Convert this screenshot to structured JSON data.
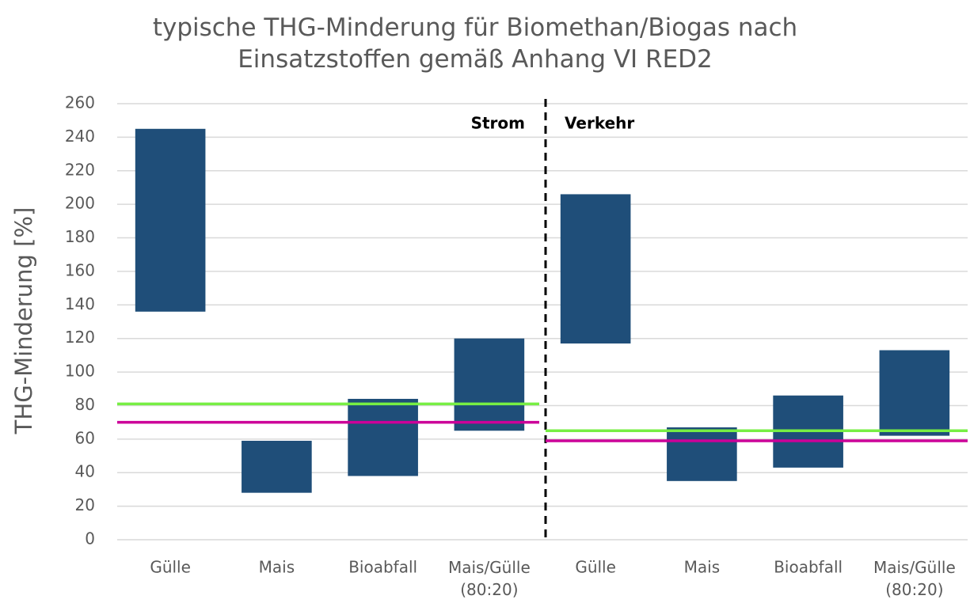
{
  "chart_data": {
    "type": "floating_bar",
    "title": "typische THG-Minderung für Biomethan/Biogas nach\nEinsatzstoffen gemäß Anhang VI RED2",
    "y_label": "THG-Minderung [%]",
    "categories": [
      "Gülle",
      "Mais",
      "Bioabfall",
      "Mais/Gülle\n(80:20)",
      "Gülle",
      "Mais",
      "Bioabfall",
      "Mais/Gülle\n(80:20)"
    ],
    "low": [
      136,
      28,
      38,
      65,
      117,
      35,
      43,
      62
    ],
    "high": [
      245,
      59,
      84,
      120,
      206,
      67,
      86,
      113
    ],
    "color": "#1f4e79",
    "sections": [
      "Strom",
      "Verkehr"
    ],
    "reference_lines": [
      {
        "color": "#77ee44",
        "values": [
          81,
          65
        ]
      },
      {
        "color": "#cc0099",
        "values": [
          70,
          59
        ]
      }
    ],
    "ylim": [
      0,
      260
    ],
    "yticks": [
      0,
      20,
      40,
      60,
      80,
      100,
      120,
      140,
      160,
      180,
      200,
      220,
      240,
      260
    ],
    "grid": true
  }
}
